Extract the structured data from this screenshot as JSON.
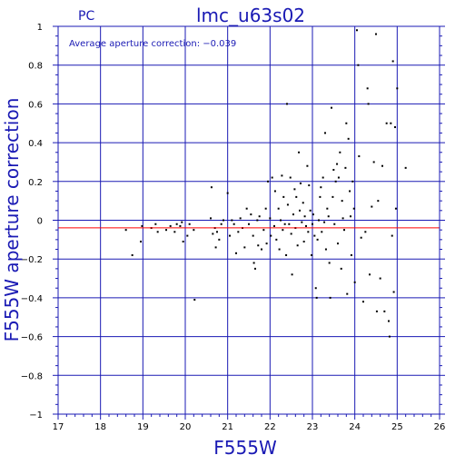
{
  "chart_data": {
    "type": "scatter",
    "title": "lmc_u63s02",
    "corner_label": "PC",
    "annotation": "Average aperture correction: −0.039",
    "xlabel": "F555W",
    "ylabel": "F555W aperture correction",
    "xlim": [
      17,
      26
    ],
    "ylim": [
      -1,
      1
    ],
    "x_ticks": [
      "17",
      "18",
      "19",
      "20",
      "21",
      "22",
      "23",
      "24",
      "25",
      "26"
    ],
    "y_ticks": [
      "1",
      "0.8",
      "0.6",
      "0.4",
      "0.2",
      "0",
      "−0.2",
      "−0.4",
      "−0.6",
      "−0.8",
      "−1"
    ],
    "grid": true,
    "reference_line": {
      "y": -0.039,
      "color": "#ff0000"
    },
    "colors": {
      "axes": "#1a1ab4",
      "grid": "#1a1ab4",
      "points": "#000000"
    },
    "points": [
      [
        18.6,
        -0.05
      ],
      [
        18.75,
        -0.18
      ],
      [
        18.95,
        -0.11
      ],
      [
        18.98,
        -0.03
      ],
      [
        19.2,
        -0.04
      ],
      [
        19.3,
        -0.02
      ],
      [
        19.35,
        -0.06
      ],
      [
        19.55,
        -0.05
      ],
      [
        19.65,
        -0.03
      ],
      [
        19.75,
        -0.06
      ],
      [
        19.8,
        -0.02
      ],
      [
        19.88,
        -0.03
      ],
      [
        19.92,
        -0.01
      ],
      [
        19.95,
        -0.11
      ],
      [
        20.05,
        -0.08
      ],
      [
        20.1,
        -0.02
      ],
      [
        20.2,
        -0.05
      ],
      [
        20.22,
        -0.41
      ],
      [
        20.6,
        0.01
      ],
      [
        20.62,
        0.17
      ],
      [
        20.65,
        -0.07
      ],
      [
        20.7,
        -0.04
      ],
      [
        20.72,
        -0.14
      ],
      [
        20.75,
        -0.06
      ],
      [
        20.8,
        -0.1
      ],
      [
        20.85,
        -0.02
      ],
      [
        20.9,
        0.0
      ],
      [
        21.0,
        0.14
      ],
      [
        21.05,
        -0.08
      ],
      [
        21.1,
        0.0
      ],
      [
        21.15,
        -0.02
      ],
      [
        21.2,
        -0.17
      ],
      [
        21.25,
        -0.06
      ],
      [
        21.3,
        0.01
      ],
      [
        21.35,
        -0.04
      ],
      [
        21.4,
        -0.14
      ],
      [
        21.45,
        0.06
      ],
      [
        21.5,
        -0.02
      ],
      [
        21.55,
        0.03
      ],
      [
        21.6,
        -0.08
      ],
      [
        21.62,
        -0.22
      ],
      [
        21.65,
        -0.25
      ],
      [
        21.7,
        0.0
      ],
      [
        21.72,
        -0.13
      ],
      [
        21.75,
        0.02
      ],
      [
        21.8,
        -0.15
      ],
      [
        21.85,
        -0.05
      ],
      [
        21.9,
        0.06
      ],
      [
        21.92,
        -0.12
      ],
      [
        21.95,
        0.2
      ],
      [
        22.0,
        0.01
      ],
      [
        22.02,
        -0.08
      ],
      [
        22.05,
        0.22
      ],
      [
        22.1,
        -0.03
      ],
      [
        22.12,
        0.15
      ],
      [
        22.15,
        -0.1
      ],
      [
        22.2,
        0.06
      ],
      [
        22.22,
        -0.15
      ],
      [
        22.25,
        0.0
      ],
      [
        22.28,
        0.23
      ],
      [
        22.3,
        -0.05
      ],
      [
        22.32,
        0.12
      ],
      [
        22.35,
        -0.02
      ],
      [
        22.38,
        -0.18
      ],
      [
        22.4,
        0.6
      ],
      [
        22.42,
        0.08
      ],
      [
        22.45,
        -0.02
      ],
      [
        22.48,
        0.22
      ],
      [
        22.5,
        -0.07
      ],
      [
        22.52,
        -0.28
      ],
      [
        22.55,
        0.03
      ],
      [
        22.58,
        0.16
      ],
      [
        22.6,
        -0.04
      ],
      [
        22.62,
        0.12
      ],
      [
        22.65,
        -0.13
      ],
      [
        22.68,
        0.35
      ],
      [
        22.7,
        0.05
      ],
      [
        22.72,
        0.19
      ],
      [
        22.75,
        -0.01
      ],
      [
        22.78,
        0.09
      ],
      [
        22.8,
        -0.11
      ],
      [
        22.82,
        0.02
      ],
      [
        22.85,
        -0.03
      ],
      [
        22.88,
        0.28
      ],
      [
        22.9,
        -0.06
      ],
      [
        22.92,
        0.18
      ],
      [
        22.95,
        0.05
      ],
      [
        22.98,
        -0.18
      ],
      [
        23.0,
        -0.02
      ],
      [
        23.02,
        0.03
      ],
      [
        23.05,
        -0.08
      ],
      [
        23.08,
        -0.35
      ],
      [
        23.1,
        -0.4
      ],
      [
        23.12,
        -0.1
      ],
      [
        23.15,
        0.0
      ],
      [
        23.18,
        0.12
      ],
      [
        23.2,
        0.17
      ],
      [
        23.22,
        -0.06
      ],
      [
        23.25,
        0.22
      ],
      [
        23.28,
        -0.01
      ],
      [
        23.3,
        0.45
      ],
      [
        23.32,
        -0.15
      ],
      [
        23.35,
        0.06
      ],
      [
        23.38,
        0.02
      ],
      [
        23.4,
        -0.22
      ],
      [
        23.42,
        -0.4
      ],
      [
        23.45,
        0.58
      ],
      [
        23.48,
        0.12
      ],
      [
        23.5,
        0.26
      ],
      [
        23.52,
        -0.02
      ],
      [
        23.55,
        0.2
      ],
      [
        23.58,
        0.29
      ],
      [
        23.6,
        -0.12
      ],
      [
        23.62,
        0.22
      ],
      [
        23.65,
        0.35
      ],
      [
        23.68,
        -0.25
      ],
      [
        23.7,
        0.1
      ],
      [
        23.72,
        0.01
      ],
      [
        23.75,
        -0.05
      ],
      [
        23.78,
        0.27
      ],
      [
        23.8,
        0.5
      ],
      [
        23.82,
        -0.38
      ],
      [
        23.85,
        0.42
      ],
      [
        23.88,
        0.15
      ],
      [
        23.9,
        0.02
      ],
      [
        23.92,
        -0.18
      ],
      [
        23.95,
        0.2
      ],
      [
        23.98,
        0.06
      ],
      [
        24.0,
        -0.32
      ],
      [
        24.05,
        0.98
      ],
      [
        24.08,
        0.8
      ],
      [
        24.1,
        0.33
      ],
      [
        24.15,
        -0.09
      ],
      [
        24.2,
        -0.42
      ],
      [
        24.25,
        -0.06
      ],
      [
        24.3,
        0.68
      ],
      [
        24.32,
        0.6
      ],
      [
        24.35,
        -0.28
      ],
      [
        24.4,
        0.07
      ],
      [
        24.45,
        0.3
      ],
      [
        24.5,
        0.96
      ],
      [
        24.52,
        -0.47
      ],
      [
        24.55,
        0.1
      ],
      [
        24.6,
        -0.3
      ],
      [
        24.65,
        0.28
      ],
      [
        24.7,
        -0.47
      ],
      [
        24.75,
        0.5
      ],
      [
        24.8,
        -0.52
      ],
      [
        24.82,
        -0.6
      ],
      [
        24.85,
        0.5
      ],
      [
        24.88,
        -0.08
      ],
      [
        24.9,
        0.82
      ],
      [
        24.92,
        -0.37
      ],
      [
        24.95,
        0.48
      ],
      [
        24.97,
        0.06
      ],
      [
        25.0,
        0.68
      ],
      [
        25.2,
        0.27
      ]
    ]
  }
}
